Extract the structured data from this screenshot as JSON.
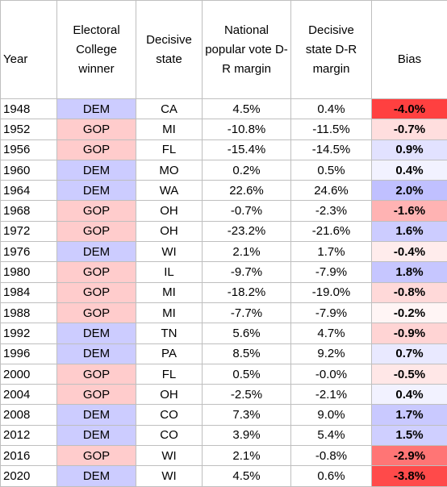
{
  "headers": {
    "year": "Year",
    "winner": "Electoral College winner",
    "state": "Decisive state",
    "national": "National popular vote D-R margin",
    "state_margin": "Decisive state D-R margin",
    "bias": "Bias"
  },
  "colors": {
    "dem_cell": "#ccccff",
    "gop_cell": "#ffcccc",
    "bias_positive_max": "#8080ff",
    "bias_negative_max": "#ff4040"
  },
  "rows": [
    {
      "year": "1948",
      "winner": "DEM",
      "state": "CA",
      "national": "4.5%",
      "state_margin": "0.4%",
      "bias": "-4.0%",
      "bias_value": -4.0
    },
    {
      "year": "1952",
      "winner": "GOP",
      "state": "MI",
      "national": "-10.8%",
      "state_margin": "-11.5%",
      "bias": "-0.7%",
      "bias_value": -0.7
    },
    {
      "year": "1956",
      "winner": "GOP",
      "state": "FL",
      "national": "-15.4%",
      "state_margin": "-14.5%",
      "bias": "0.9%",
      "bias_value": 0.9
    },
    {
      "year": "1960",
      "winner": "DEM",
      "state": "MO",
      "national": "0.2%",
      "state_margin": "0.5%",
      "bias": "0.4%",
      "bias_value": 0.4
    },
    {
      "year": "1964",
      "winner": "DEM",
      "state": "WA",
      "national": "22.6%",
      "state_margin": "24.6%",
      "bias": "2.0%",
      "bias_value": 2.0
    },
    {
      "year": "1968",
      "winner": "GOP",
      "state": "OH",
      "national": "-0.7%",
      "state_margin": "-2.3%",
      "bias": "-1.6%",
      "bias_value": -1.6
    },
    {
      "year": "1972",
      "winner": "GOP",
      "state": "OH",
      "national": "-23.2%",
      "state_margin": "-21.6%",
      "bias": "1.6%",
      "bias_value": 1.6
    },
    {
      "year": "1976",
      "winner": "DEM",
      "state": "WI",
      "national": "2.1%",
      "state_margin": "1.7%",
      "bias": "-0.4%",
      "bias_value": -0.4
    },
    {
      "year": "1980",
      "winner": "GOP",
      "state": "IL",
      "national": "-9.7%",
      "state_margin": "-7.9%",
      "bias": "1.8%",
      "bias_value": 1.8
    },
    {
      "year": "1984",
      "winner": "GOP",
      "state": "MI",
      "national": "-18.2%",
      "state_margin": "-19.0%",
      "bias": "-0.8%",
      "bias_value": -0.8
    },
    {
      "year": "1988",
      "winner": "GOP",
      "state": "MI",
      "national": "-7.7%",
      "state_margin": "-7.9%",
      "bias": "-0.2%",
      "bias_value": -0.2
    },
    {
      "year": "1992",
      "winner": "DEM",
      "state": "TN",
      "national": "5.6%",
      "state_margin": "4.7%",
      "bias": "-0.9%",
      "bias_value": -0.9
    },
    {
      "year": "1996",
      "winner": "DEM",
      "state": "PA",
      "national": "8.5%",
      "state_margin": "9.2%",
      "bias": "0.7%",
      "bias_value": 0.7
    },
    {
      "year": "2000",
      "winner": "GOP",
      "state": "FL",
      "national": "0.5%",
      "state_margin": "-0.0%",
      "bias": "-0.5%",
      "bias_value": -0.5
    },
    {
      "year": "2004",
      "winner": "GOP",
      "state": "OH",
      "national": "-2.5%",
      "state_margin": "-2.1%",
      "bias": "0.4%",
      "bias_value": 0.4
    },
    {
      "year": "2008",
      "winner": "DEM",
      "state": "CO",
      "national": "7.3%",
      "state_margin": "9.0%",
      "bias": "1.7%",
      "bias_value": 1.7
    },
    {
      "year": "2012",
      "winner": "DEM",
      "state": "CO",
      "national": "3.9%",
      "state_margin": "5.4%",
      "bias": "1.5%",
      "bias_value": 1.5
    },
    {
      "year": "2016",
      "winner": "GOP",
      "state": "WI",
      "national": "2.1%",
      "state_margin": "-0.8%",
      "bias": "-2.9%",
      "bias_value": -2.9
    },
    {
      "year": "2020",
      "winner": "DEM",
      "state": "WI",
      "national": "4.5%",
      "state_margin": "0.6%",
      "bias": "-3.8%",
      "bias_value": -3.8
    }
  ]
}
